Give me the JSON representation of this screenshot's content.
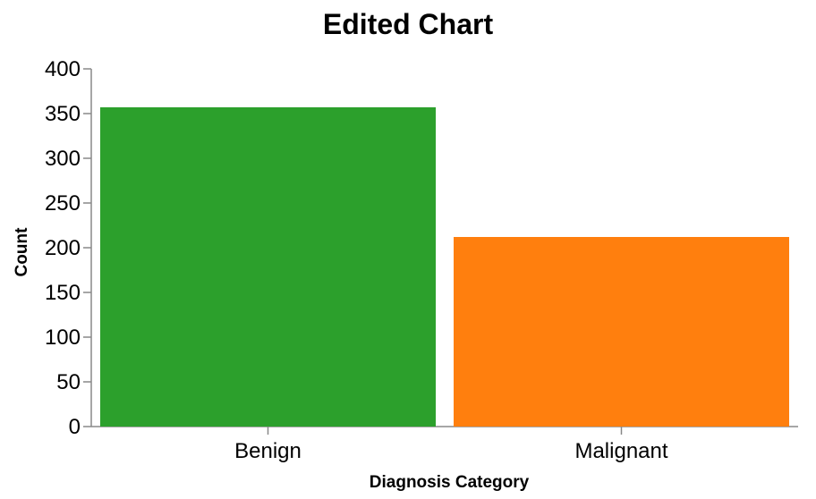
{
  "chart_data": {
    "type": "bar",
    "title": "Edited Chart",
    "xlabel": "Diagnosis Category",
    "ylabel": "Count",
    "categories": [
      "Benign",
      "Malignant"
    ],
    "values": [
      357,
      212
    ],
    "colors": [
      "#2ca02c",
      "#ff7f0e"
    ],
    "ylim": [
      0,
      400
    ],
    "yticks": [
      0,
      50,
      100,
      150,
      200,
      250,
      300,
      350,
      400
    ],
    "grid": false,
    "legend": "none"
  }
}
